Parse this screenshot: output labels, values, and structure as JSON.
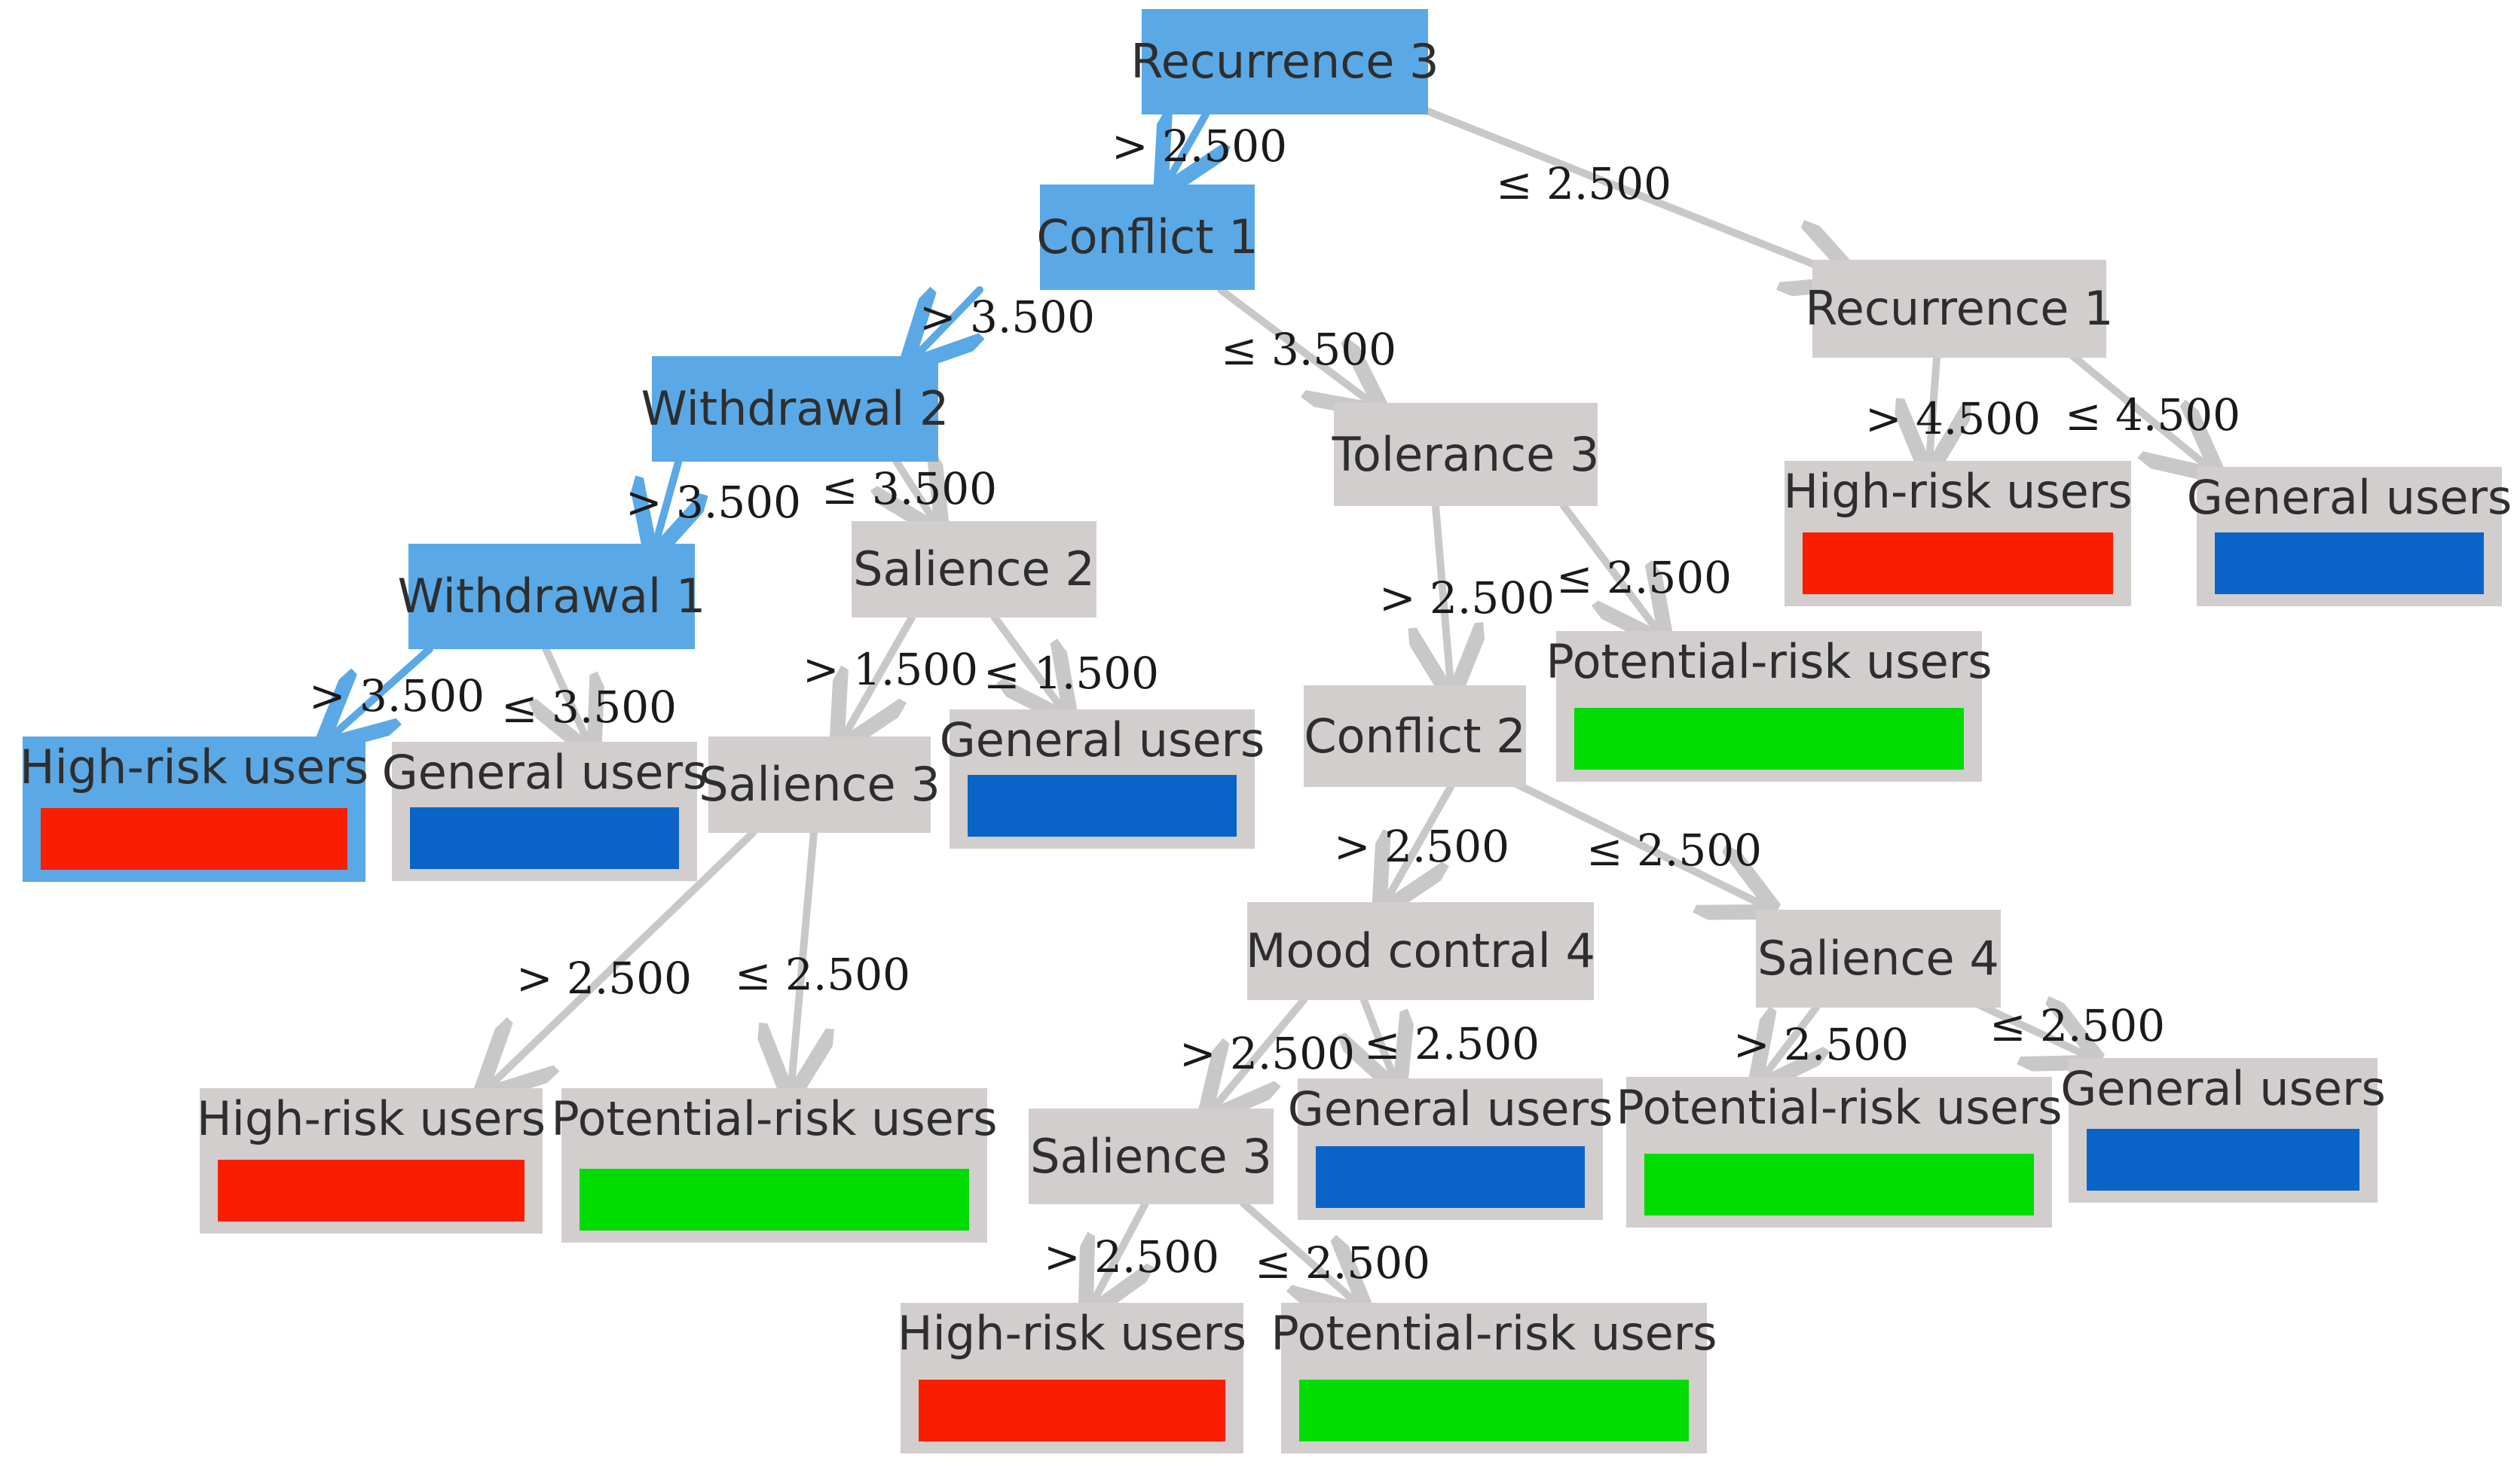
{
  "colors": {
    "path_node": "#5aa9e6",
    "node": "#d2cecd",
    "edge": "#c8c8c8",
    "path_edge": "#5aa9e6",
    "high_risk": "#fa1e00",
    "general": "#0a64c8",
    "potential_risk": "#00dc00"
  },
  "nodes": {
    "recurrence3": "Recurrence 3",
    "conflict1": "Conflict 1",
    "withdrawal2": "Withdrawal 2",
    "withdrawal1": "Withdrawal 1",
    "salience2": "Salience 2",
    "salience3_a": "Salience 3",
    "tolerance3": "Tolerance 3",
    "conflict2": "Conflict 2",
    "mood_contral4": "Mood contral 4",
    "salience4": "Salience 4",
    "salience3_b": "Salience 3",
    "recurrence1": "Recurrence 1"
  },
  "leaves": {
    "l1": {
      "label": "High-risk users",
      "class": "high_risk"
    },
    "l2": {
      "label": "General users",
      "class": "general"
    },
    "l3": {
      "label": "General users",
      "class": "general"
    },
    "l4": {
      "label": "High-risk users",
      "class": "high_risk"
    },
    "l5": {
      "label": "Potential-risk users",
      "class": "potential_risk"
    },
    "l6": {
      "label": "Potential-risk users",
      "class": "potential_risk"
    },
    "l7": {
      "label": "General users",
      "class": "general"
    },
    "l8": {
      "label": "Potential-risk users",
      "class": "potential_risk"
    },
    "l9": {
      "label": "General users",
      "class": "general"
    },
    "l10": {
      "label": "High-risk users",
      "class": "high_risk"
    },
    "l11": {
      "label": "Potential-risk users",
      "class": "potential_risk"
    },
    "l12": {
      "label": "High-risk users",
      "class": "high_risk"
    },
    "l13": {
      "label": "General users",
      "class": "general"
    }
  },
  "edge_labels": {
    "e1": "> 2.500",
    "e2": "≤ 2.500",
    "e3": "> 3.500",
    "e4": "≤ 3.500",
    "e5": "> 3.500",
    "e6": "≤ 3.500",
    "e7": "> 3.500",
    "e8": "≤ 3.500",
    "e9": "> 1.500",
    "e10": "≤ 1.500",
    "e11": "> 2.500",
    "e12": "≤ 2.500",
    "e13": "> 2.500",
    "e14": "≤ 2.500",
    "e15": "> 2.500",
    "e16": "≤ 2.500",
    "e17": "> 2.500",
    "e18": "≤ 2.500",
    "e19": "> 2.500",
    "e20": "≤ 2.500",
    "e21": "> 2.500",
    "e22": "≤ 2.500",
    "e23": "> 4.500",
    "e24": "≤ 4.500"
  }
}
